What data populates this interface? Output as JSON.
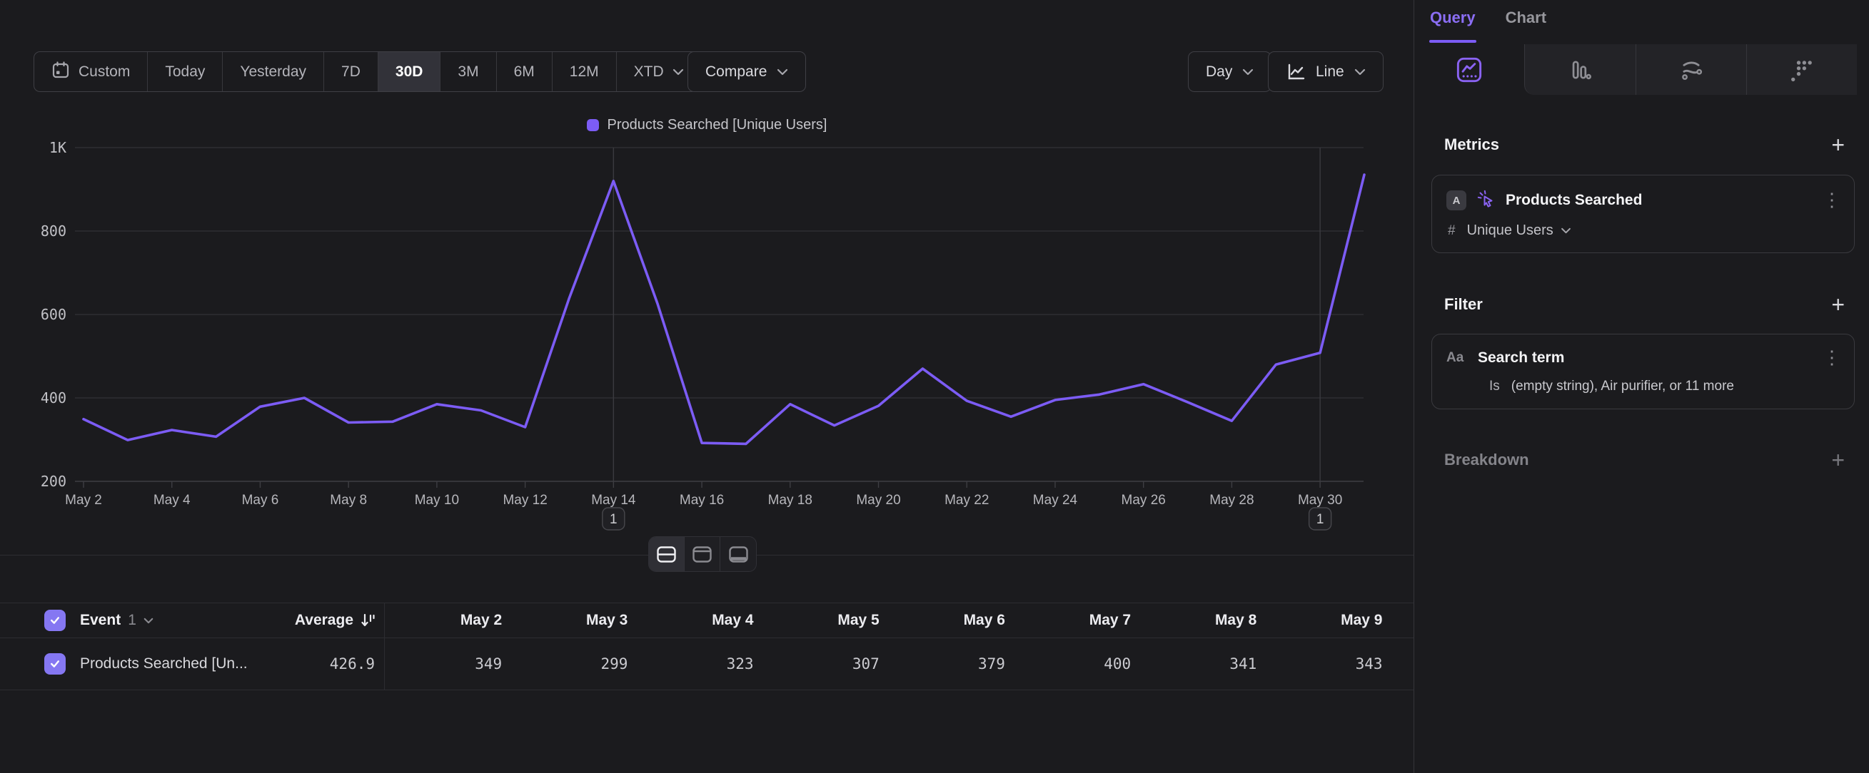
{
  "toolbar": {
    "date_ranges": [
      {
        "label": "Custom",
        "icon": "calendar"
      },
      {
        "label": "Today"
      },
      {
        "label": "Yesterday"
      },
      {
        "label": "7D"
      },
      {
        "label": "30D",
        "active": true
      },
      {
        "label": "3M"
      },
      {
        "label": "6M"
      },
      {
        "label": "12M"
      },
      {
        "label": "XTD",
        "chevron": true
      }
    ],
    "active_range": "30D",
    "compare_label": "Compare",
    "granularity_label": "Day",
    "chart_type_label": "Line"
  },
  "colors": {
    "accent": "#7c5cf5",
    "checkbox": "#8577f2",
    "gridline": "#2e2e32",
    "axis": "#3e3e43",
    "annotation_line": "#3a3a3f"
  },
  "chart_data": {
    "type": "line",
    "title": "",
    "categories": [
      "May 2",
      "May 3",
      "May 4",
      "May 5",
      "May 6",
      "May 7",
      "May 8",
      "May 9",
      "May 10",
      "May 11",
      "May 12",
      "May 13",
      "May 14",
      "May 15",
      "May 16",
      "May 17",
      "May 18",
      "May 19",
      "May 20",
      "May 21",
      "May 22",
      "May 23",
      "May 24",
      "May 25",
      "May 26",
      "May 27",
      "May 28",
      "May 29",
      "May 30",
      "May 31"
    ],
    "series": [
      {
        "name": "Products Searched [Unique Users]",
        "color": "#7c5cf5",
        "values": [
          349,
          299,
          323,
          307,
          379,
          400,
          341,
          343,
          385,
          370,
          330,
          640,
          920,
          625,
          292,
          290,
          385,
          334,
          381,
          470,
          393,
          355,
          395,
          408,
          433,
          390,
          345,
          480,
          508,
          935
        ]
      }
    ],
    "ylim": [
      200,
      1000
    ],
    "y_ticks": [
      {
        "label": "200",
        "value": 200
      },
      {
        "label": "400",
        "value": 400
      },
      {
        "label": "600",
        "value": 600
      },
      {
        "label": "800",
        "value": 800
      },
      {
        "label": "1K",
        "value": 1000
      }
    ],
    "x_label_every": 2,
    "grid": "horizontal",
    "legend_position": "top-center",
    "annotations": [
      {
        "category": "May 14",
        "label": "1"
      },
      {
        "category": "May 30",
        "label": "1"
      }
    ]
  },
  "layout_switcher": {
    "options": [
      "split-horizontal",
      "panel-top",
      "panel-bottom"
    ],
    "active": "split-horizontal"
  },
  "table": {
    "header": {
      "event_label": "Event",
      "event_count": "1",
      "average_label": "Average"
    },
    "columns": [
      "May 2",
      "May 3",
      "May 4",
      "May 5",
      "May 6",
      "May 7",
      "May 8",
      "May 9"
    ],
    "rows": [
      {
        "name": "Products Searched [Un...",
        "average": "426.9",
        "checked": true,
        "values": [
          "349",
          "299",
          "323",
          "307",
          "379",
          "400",
          "341",
          "343"
        ]
      }
    ]
  },
  "panel": {
    "tabs": [
      {
        "label": "Query",
        "active": true
      },
      {
        "label": "Chart",
        "active": false
      }
    ],
    "view_tabs": [
      "insights-line",
      "bar-chart",
      "flow",
      "grid-dots"
    ],
    "active_view_tab": "insights-line",
    "metrics": {
      "title": "Metrics",
      "items": [
        {
          "badge": "A",
          "name": "Products Searched",
          "measure_prefix": "#",
          "measure": "Unique Users"
        }
      ]
    },
    "filter": {
      "title": "Filter",
      "items": [
        {
          "badge": "Aa",
          "name": "Search term",
          "operator": "Is",
          "value": "(empty string), Air purifier, or 11 more"
        }
      ]
    },
    "breakdown": {
      "title": "Breakdown",
      "disabled": true
    }
  }
}
